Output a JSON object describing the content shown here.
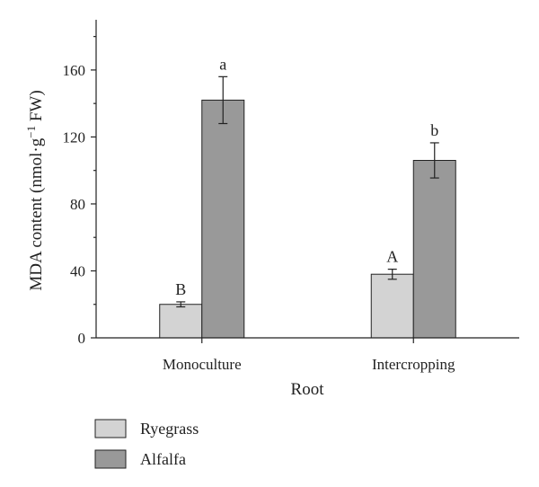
{
  "chart_data": {
    "type": "bar",
    "categories": [
      "Monoculture",
      "Intercropping"
    ],
    "series": [
      {
        "name": "Ryegrass",
        "color": "#d3d3d3",
        "values": [
          20,
          38
        ],
        "errors": [
          1.5,
          3
        ],
        "labels": [
          "B",
          "A"
        ]
      },
      {
        "name": "Alfalfa",
        "color": "#999999",
        "values": [
          142,
          106
        ],
        "errors": [
          14,
          10.5
        ],
        "labels": [
          "a",
          "b"
        ]
      }
    ],
    "xlabel": "Root",
    "ylabel": "MDA content (nmol·g",
    "ylabel_superscript": "−1",
    "ylabel_suffix": " FW)",
    "ylim": [
      0,
      190
    ],
    "yticks": [
      0,
      40,
      80,
      120,
      160
    ],
    "legend_position": "bottom-left"
  }
}
